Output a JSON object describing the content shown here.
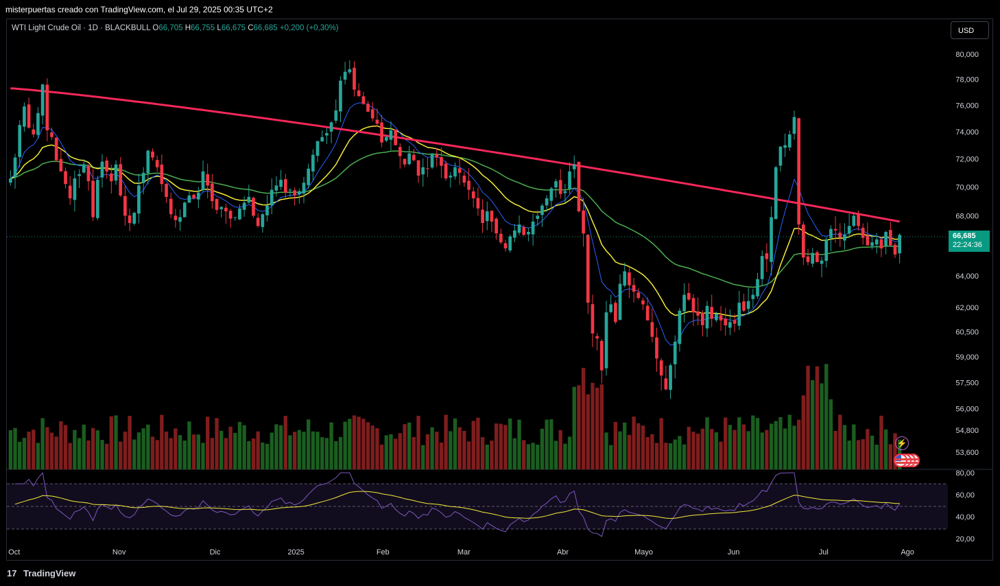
{
  "header": {
    "credit": "misterpuertas creado con TradingView.com, el Jul 29, 2025 00:35 UTC+2"
  },
  "legend": {
    "symbol": "WTI Light Crude Oil · 1D · BLACKBULL",
    "o_label": "O",
    "o_value": "66,705",
    "h_label": "H",
    "h_value": "66,755",
    "l_label": "L",
    "l_value": "66,675",
    "c_label": "C",
    "c_value": "66,685",
    "change": "+0,200 (+0,30%)"
  },
  "currency_button": "USD",
  "last_price": {
    "price": "66,685",
    "countdown": "22:24:36"
  },
  "footer": {
    "brand": "TradingView",
    "logo_mark": "17"
  },
  "colors": {
    "up": "#26a69a",
    "down": "#f23645",
    "ma200": "#f7285a",
    "ema20": "#f5eb3a",
    "ema50": "#4caf50",
    "ma9": "#2962ff",
    "rsi": "#7e57c2",
    "rsi_ma": "#f5eb3a",
    "volume_up": "#1b5e20",
    "volume_down": "#7f1d1d"
  },
  "icons": {
    "alert": "lightning-icon",
    "events": "us-flag-icon"
  },
  "chart_data": {
    "type": "candlestick",
    "x_ticks": [
      "Oct",
      "Nov",
      "Dic",
      "2025",
      "Feb",
      "Mar",
      "Abr",
      "Mayo",
      "Jun",
      "Jul",
      "Ago"
    ],
    "price_axis_ticks": [
      "80,000",
      "78,000",
      "76,000",
      "74,000",
      "72,000",
      "70,000",
      "68,000",
      "64,000",
      "62,000",
      "60,500",
      "59,000",
      "57,500",
      "56,000",
      "54,800",
      "53,600"
    ],
    "price_scale": "log",
    "rsi_axis_ticks": [
      "80,00",
      "60,00",
      "40,00",
      "20,00"
    ],
    "rsi_bands": [
      70,
      30
    ],
    "closes": [
      70.6,
      72.1,
      74.5,
      75.9,
      74.3,
      73.8,
      75.4,
      77.6,
      74.1,
      73.6,
      71.9,
      71.1,
      70.2,
      69.2,
      70.6,
      70.9,
      71.6,
      70.4,
      67.9,
      70.5,
      71.8,
      71.1,
      70.4,
      71.6,
      69.4,
      68.0,
      67.5,
      68.2,
      70.1,
      71.0,
      72.6,
      72.1,
      71.4,
      70.2,
      69.3,
      68.1,
      67.7,
      67.9,
      68.9,
      69.4,
      69.2,
      69.6,
      71.1,
      70.1,
      69.0,
      68.4,
      68.6,
      68.3,
      67.8,
      67.9,
      68.5,
      68.9,
      69.3,
      68.0,
      67.3,
      68.1,
      68.7,
      69.8,
      70.1,
      70.5,
      69.6,
      69.8,
      69.4,
      69.7,
      70.3,
      71.3,
      72.3,
      73.3,
      73.6,
      73.9,
      74.7,
      75.6,
      77.9,
      78.6,
      78.8,
      77.2,
      76.7,
      76.1,
      75.5,
      75.0,
      74.6,
      73.2,
      73.6,
      74.1,
      73.0,
      72.2,
      71.6,
      72.4,
      71.9,
      70.8,
      71.4,
      71.3,
      72.4,
      72.1,
      71.5,
      70.6,
      70.8,
      71.4,
      71.0,
      70.3,
      69.8,
      69.2,
      68.5,
      67.5,
      68.3,
      67.6,
      66.8,
      66.2,
      65.8,
      66.6,
      67.0,
      67.4,
      66.7,
      66.9,
      67.6,
      68.0,
      68.7,
      69.2,
      69.9,
      70.4,
      69.5,
      69.7,
      71.1,
      71.6,
      68.3,
      66.8,
      62.3,
      60.4,
      60.1,
      58.2,
      61.7,
      62.2,
      61.1,
      63.5,
      64.3,
      63.4,
      63.0,
      62.6,
      62.2,
      61.2,
      60.2,
      58.9,
      57.9,
      57.1,
      58.5,
      59.9,
      61.8,
      62.8,
      62.5,
      61.7,
      61.5,
      60.9,
      62.1,
      61.3,
      61.6,
      61.2,
      60.9,
      61.1,
      61.0,
      62.3,
      61.8,
      62.4,
      62.8,
      63.8,
      65.3,
      65.1,
      67.9,
      71.4,
      72.9,
      73.0,
      73.8,
      75.1,
      67.4,
      65.2,
      64.9,
      65.5,
      64.9,
      65.0,
      66.4,
      67.1,
      67.0,
      66.5,
      66.7,
      67.3,
      68.0,
      67.3,
      66.5,
      66.0,
      66.2,
      66.4,
      65.8,
      66.9,
      66.0,
      65.4,
      66.7
    ],
    "ema20_last": 66.2,
    "ema50_last": 65.6,
    "ma200_last": 67.6,
    "rsi_last": 53,
    "rsi_ma_last": 49
  }
}
